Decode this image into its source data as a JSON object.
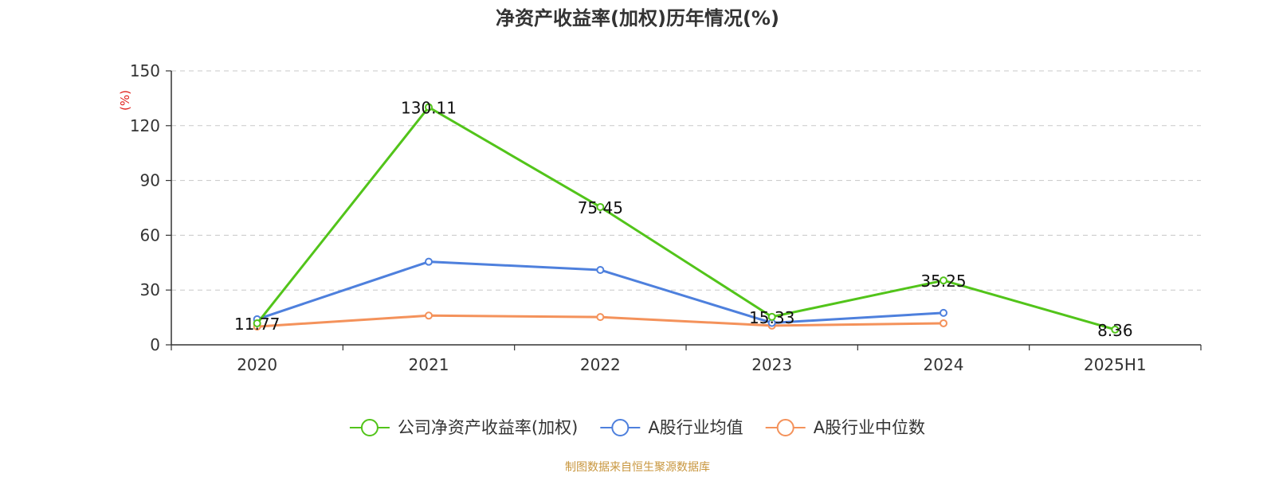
{
  "chart_data": {
    "type": "line",
    "title": "净资产收益率(加权)历年情况(%)",
    "ylabel": "(%)",
    "xlabel": "",
    "categories": [
      "2020",
      "2021",
      "2022",
      "2023",
      "2024",
      "2025H1"
    ],
    "ylim": [
      0,
      150
    ],
    "yticks": [
      0,
      30,
      60,
      90,
      120,
      150
    ],
    "grid": true,
    "legend_position": "bottom",
    "series": [
      {
        "name": "公司净资产收益率(加权)",
        "color": "#52c41a",
        "values": [
          11.77,
          130.11,
          75.45,
          15.33,
          35.25,
          8.36
        ],
        "labels": [
          "11.77",
          "130.11",
          "75.45",
          "15.33",
          "35.25",
          "8.36"
        ]
      },
      {
        "name": "A股行业均值",
        "color": "#4e80dd",
        "values": [
          14,
          45.5,
          41,
          12,
          17.5,
          null
        ]
      },
      {
        "name": "A股行业中位数",
        "color": "#f4925b",
        "values": [
          10,
          16,
          15.2,
          10.5,
          11.8,
          null
        ]
      }
    ],
    "source": "制图数据来自恒生聚源数据库",
    "source_color": "#c8963e",
    "ylabel_color": "#e0201b"
  }
}
